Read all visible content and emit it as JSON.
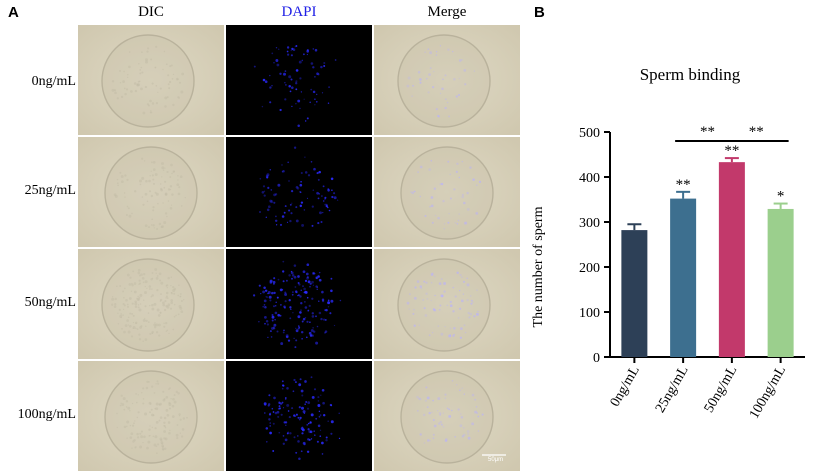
{
  "panels": {
    "a": "A",
    "b": "B"
  },
  "columns": {
    "dic": "DIC",
    "dapi": "DAPI",
    "merge": "Merge"
  },
  "colors": {
    "dapi_header": "#1e1ee6",
    "dapi_signal": "#2a2aff",
    "merge_signal": "#b8b0ff"
  },
  "rows": [
    "0ng/mL",
    "25ng/mL",
    "50ng/mL",
    "100ng/mL"
  ],
  "dapi_intensity": [
    0.35,
    0.45,
    1.0,
    0.7
  ],
  "scale_bar": "50μm",
  "chart_data": {
    "type": "bar",
    "title": "Sperm binding",
    "ylabel": "The number of sperm",
    "xlabel": "",
    "ylim": [
      0,
      500
    ],
    "yticks": [
      0,
      100,
      200,
      300,
      400,
      500
    ],
    "categories": [
      "0ng/mL",
      "25ng/mL",
      "50ng/mL",
      "100ng/mL"
    ],
    "values": [
      282,
      352,
      433,
      329
    ],
    "errors": [
      13,
      15,
      9,
      12
    ],
    "bar_colors": [
      "#2d4057",
      "#3d6f8f",
      "#c2396b",
      "#9bcf8d"
    ],
    "bar_annotations": [
      "",
      "**",
      "**",
      "*"
    ],
    "comparisons": [
      {
        "from": 1,
        "to": 2,
        "label": "**",
        "y": 480
      },
      {
        "from": 2,
        "to": 3,
        "label": "**",
        "y": 480
      }
    ]
  }
}
